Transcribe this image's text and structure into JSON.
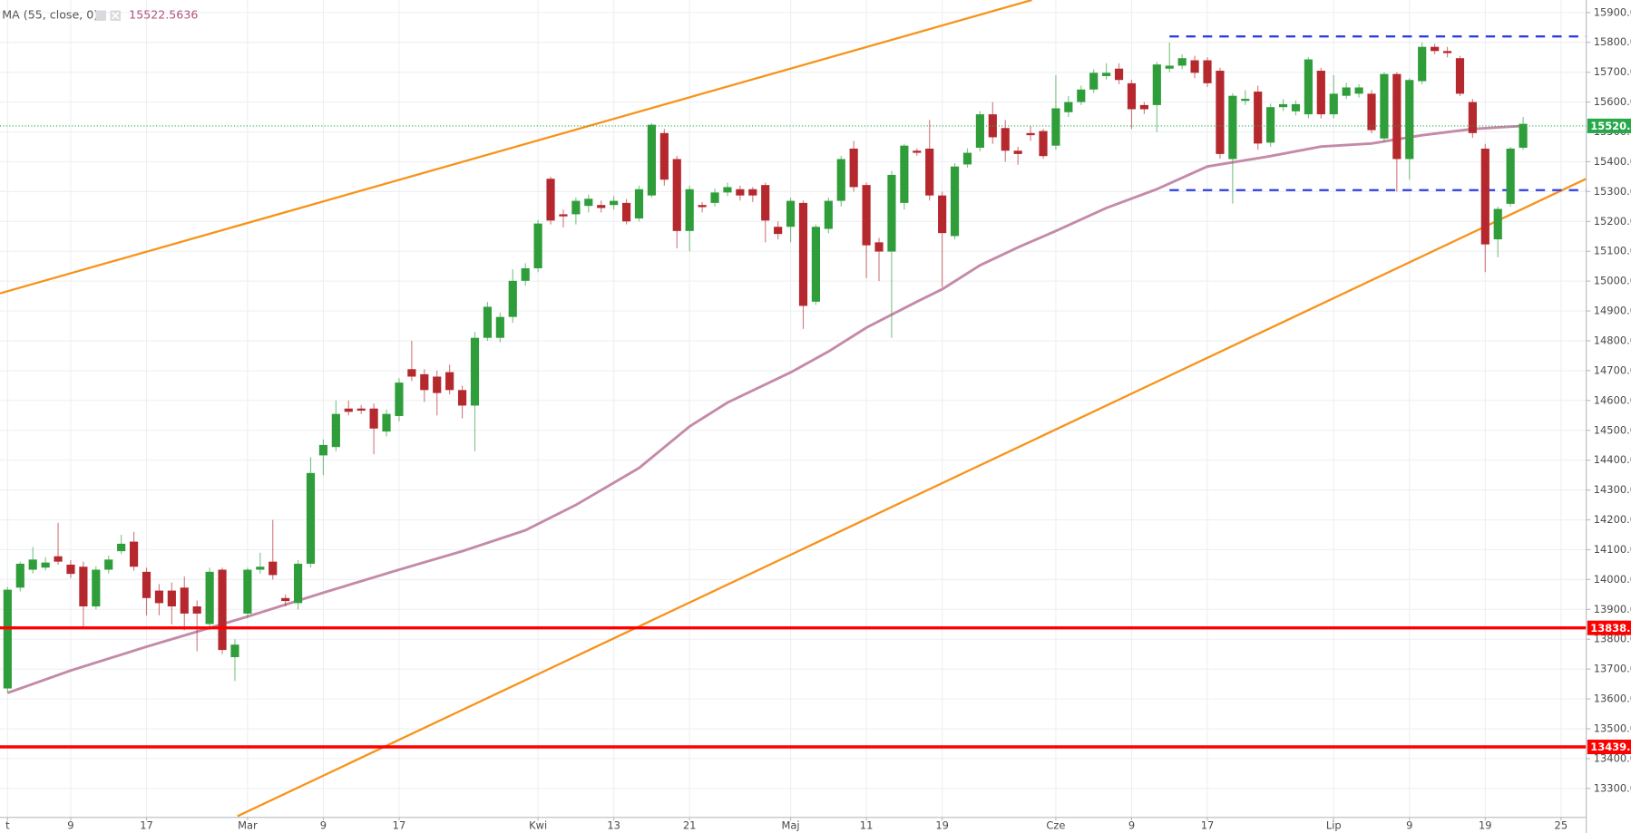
{
  "chart_data": {
    "type": "candlestick",
    "indicator": {
      "name": "MA (55, close, 0)",
      "value": 15522.5636,
      "color": "#c48aa8",
      "x": [
        0,
        5,
        11,
        19,
        25,
        31,
        36,
        41,
        45,
        50,
        54,
        57,
        62,
        65,
        68,
        72,
        74,
        77,
        80,
        83,
        87,
        91,
        95,
        100,
        104,
        108,
        112,
        116,
        120
      ],
      "values": [
        13620,
        13695,
        13775,
        13876,
        13956,
        14033,
        14095,
        14165,
        14250,
        14374,
        14513,
        14593,
        14694,
        14764,
        14844,
        14931,
        14973,
        15053,
        15113,
        15168,
        15245,
        15308,
        15384,
        15419,
        15451,
        15461,
        15489,
        15510,
        15520
      ]
    },
    "up_color": "#2f9e3a",
    "down_color": "#b5282e",
    "open": [
      13635,
      13973,
      14033,
      14040,
      14078,
      14050,
      14043,
      13910,
      14033,
      14095,
      14127,
      14026,
      13963,
      13963,
      13973,
      13910,
      13851,
      14033,
      13740,
      13886,
      14033,
      14060,
      13938,
      13921,
      14053,
      14416,
      14444,
      14573,
      14573,
      14573,
      14496,
      14548,
      14705,
      14688,
      14680,
      14695,
      14635,
      14583,
      14810,
      14810,
      14880,
      15001,
      15043,
      15343,
      15224,
      15224,
      15252,
      15255,
      15255,
      15262,
      15210,
      15287,
      15496,
      15409,
      15168,
      15255,
      15262,
      15297,
      15308,
      15308,
      15322,
      15182,
      15182,
      15262,
      14931,
      15175,
      15269,
      15444,
      15322,
      15130,
      15099,
      15262,
      15437,
      15444,
      15287,
      15151,
      15391,
      15447,
      15559,
      15513,
      15437,
      15496,
      15503,
      15454,
      15566,
      15600,
      15642,
      15687,
      15712,
      15663,
      15590,
      15590,
      15712,
      15722,
      15740,
      15740,
      15705,
      15409,
      15604,
      15635,
      15464,
      15583,
      15569,
      15559,
      15705,
      15559,
      15621,
      15628,
      15628,
      15478,
      15694,
      15409,
      15670,
      15785,
      15771,
      15747,
      15600,
      15444,
      15140,
      15259,
      15447
    ],
    "high": [
      13975,
      14060,
      14109,
      14075,
      14190,
      14065,
      14060,
      14045,
      14080,
      14150,
      14160,
      14040,
      13985,
      13990,
      14010,
      13930,
      14040,
      14040,
      13800,
      14040,
      14090,
      14200,
      13950,
      14065,
      14410,
      14470,
      14600,
      14600,
      14585,
      14590,
      14570,
      14675,
      14800,
      14705,
      14700,
      14720,
      14650,
      14830,
      14930,
      14895,
      15040,
      15060,
      15205,
      15350,
      15240,
      15280,
      15290,
      15270,
      15285,
      15275,
      15320,
      15530,
      15510,
      15420,
      15320,
      15265,
      15310,
      15330,
      15320,
      15315,
      15330,
      15200,
      15280,
      15270,
      15190,
      15280,
      15420,
      15470,
      15330,
      15145,
      15370,
      15460,
      15445,
      15540,
      15300,
      15395,
      15445,
      15570,
      15600,
      15540,
      15450,
      15520,
      15510,
      15690,
      15620,
      15655,
      15710,
      15730,
      15730,
      15675,
      15600,
      15735,
      15800,
      15760,
      15755,
      15750,
      15715,
      15630,
      15640,
      15655,
      15595,
      15610,
      15605,
      15750,
      15715,
      15690,
      15665,
      15660,
      15640,
      15700,
      15700,
      15680,
      15800,
      15795,
      15785,
      15755,
      15610,
      15460,
      15250,
      15450,
      15550
    ],
    "low": [
      13620,
      13960,
      14020,
      14030,
      14050,
      14005,
      13840,
      13900,
      14020,
      14085,
      14030,
      13880,
      13880,
      13850,
      13830,
      13760,
      13830,
      13750,
      13660,
      13870,
      14020,
      14000,
      13910,
      13900,
      14040,
      14350,
      14430,
      14550,
      14555,
      14420,
      14480,
      14530,
      14665,
      14595,
      14550,
      14620,
      14540,
      14430,
      14800,
      14795,
      14860,
      14985,
      15030,
      15190,
      15180,
      15190,
      15230,
      15230,
      15240,
      15190,
      15200,
      15280,
      15320,
      15110,
      15100,
      15230,
      15250,
      15285,
      15270,
      15265,
      15130,
      15140,
      15130,
      14840,
      14920,
      15160,
      15250,
      15300,
      15010,
      15000,
      14810,
      15240,
      15420,
      15270,
      14980,
      15140,
      15380,
      15435,
      15460,
      15400,
      15390,
      15470,
      15410,
      15440,
      15550,
      15590,
      15630,
      15675,
      15660,
      15510,
      15560,
      15500,
      15700,
      15710,
      15680,
      15650,
      15410,
      15260,
      15590,
      15440,
      15450,
      15570,
      15555,
      15545,
      15545,
      15545,
      15610,
      15615,
      15495,
      15465,
      15300,
      15340,
      15660,
      15760,
      15750,
      15620,
      15480,
      15030,
      15080,
      15250,
      15440
    ],
    "close": [
      13966,
      14053,
      14067,
      14057,
      14060,
      14019,
      13910,
      14033,
      14067,
      14120,
      14043,
      13938,
      13921,
      13910,
      13886,
      13886,
      14026,
      13764,
      13782,
      14033,
      14043,
      14015,
      13928,
      14053,
      14357,
      14451,
      14555,
      14562,
      14566,
      14506,
      14555,
      14660,
      14680,
      14635,
      14625,
      14635,
      14583,
      14810,
      14914,
      14880,
      15001,
      15043,
      15193,
      15203,
      15217,
      15269,
      15276,
      15245,
      15269,
      15200,
      15308,
      15524,
      15340,
      15168,
      15308,
      15248,
      15297,
      15315,
      15287,
      15287,
      15203,
      15158,
      15269,
      14917,
      15182,
      15269,
      15409,
      15315,
      15120,
      15099,
      15356,
      15454,
      15430,
      15287,
      15161,
      15384,
      15430,
      15559,
      15482,
      15437,
      15426,
      15489,
      15419,
      15579,
      15600,
      15642,
      15698,
      15698,
      15674,
      15576,
      15576,
      15726,
      15722,
      15747,
      15698,
      15663,
      15426,
      15621,
      15611,
      15461,
      15583,
      15593,
      15593,
      15743,
      15559,
      15628,
      15649,
      15649,
      15506,
      15694,
      15409,
      15674,
      15785,
      15771,
      15764,
      15628,
      15496,
      15123,
      15242,
      15444,
      15527
    ],
    "xlim": [
      -0.6,
      125
    ],
    "xticks": [
      {
        "value": 0,
        "label": "t"
      },
      {
        "value": 5,
        "label": "9"
      },
      {
        "value": 11,
        "label": "17"
      },
      {
        "value": 19,
        "label": "Mar"
      },
      {
        "value": 25,
        "label": "9"
      },
      {
        "value": 31,
        "label": "17"
      },
      {
        "value": 42,
        "label": "Kwi"
      },
      {
        "value": 48,
        "label": "13"
      },
      {
        "value": 54,
        "label": "21"
      },
      {
        "value": 62,
        "label": "Maj"
      },
      {
        "value": 68,
        "label": "11"
      },
      {
        "value": 74,
        "label": "19"
      },
      {
        "value": 83,
        "label": "Cze"
      },
      {
        "value": 89,
        "label": "9"
      },
      {
        "value": 95,
        "label": "17"
      },
      {
        "value": 105,
        "label": "Lip"
      },
      {
        "value": 111,
        "label": "9"
      },
      {
        "value": 117,
        "label": "19"
      },
      {
        "value": 123,
        "label": "25"
      }
    ],
    "ylim": [
      13203,
      15942
    ],
    "yticks": [
      {
        "value": 13300,
        "label": "13300.0"
      },
      {
        "value": 13400,
        "label": "13400.0"
      },
      {
        "value": 13500,
        "label": "13500.0"
      },
      {
        "value": 13600,
        "label": "13600.0"
      },
      {
        "value": 13700,
        "label": "13700.0"
      },
      {
        "value": 13800,
        "label": "13800.0"
      },
      {
        "value": 13900,
        "label": "13900.0"
      },
      {
        "value": 14000,
        "label": "14000.0"
      },
      {
        "value": 14100,
        "label": "14100.0"
      },
      {
        "value": 14200,
        "label": "14200.0"
      },
      {
        "value": 14300,
        "label": "14300.0"
      },
      {
        "value": 14400,
        "label": "14400.0"
      },
      {
        "value": 14500,
        "label": "14500.0"
      },
      {
        "value": 14600,
        "label": "14600.0"
      },
      {
        "value": 14700,
        "label": "14700.0"
      },
      {
        "value": 14800,
        "label": "14800.0"
      },
      {
        "value": 14900,
        "label": "14900.0"
      },
      {
        "value": 15000,
        "label": "15000.0"
      },
      {
        "value": 15100,
        "label": "15100.0"
      },
      {
        "value": 15200,
        "label": "15200.0"
      },
      {
        "value": 15300,
        "label": "15300.0"
      },
      {
        "value": 15400,
        "label": "15400.0"
      },
      {
        "value": 15500,
        "label": "15500.0"
      },
      {
        "value": 15600,
        "label": "15600.0"
      },
      {
        "value": 15700,
        "label": "15700.0"
      },
      {
        "value": 15800,
        "label": "15800.0"
      },
      {
        "value": 15900,
        "label": "15900.0"
      }
    ],
    "levels": [
      {
        "value": 15520.1,
        "color": "#27a84a",
        "style": "dotted"
      },
      {
        "value": 13838.1,
        "color": "#ff0000",
        "style": "solid"
      },
      {
        "value": 13439.2,
        "color": "#ff0000",
        "style": "solid"
      }
    ],
    "ranges": [
      {
        "x": [
          92,
          125
        ],
        "values": [
          15820,
          15820
        ],
        "color": "#2d3ee6"
      },
      {
        "x": [
          92,
          125
        ],
        "values": [
          15305,
          15305
        ],
        "color": "#2d3ee6"
      }
    ],
    "trendlines": [
      {
        "x": [
          -0.6,
          81.1
        ],
        "values": [
          14959,
          15942
        ],
        "color": "#f7931a"
      },
      {
        "x": [
          18.2,
          125
        ],
        "values": [
          13207,
          15343
        ],
        "color": "#f7931a"
      }
    ],
    "grid": true
  }
}
